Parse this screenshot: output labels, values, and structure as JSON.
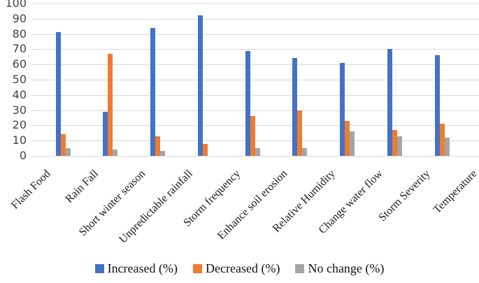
{
  "chart_data": {
    "type": "bar",
    "title": "",
    "xlabel": "",
    "ylabel": "",
    "categories": [
      "Flash Food",
      "Rain Fall",
      "Short winter season",
      "Unpredictable rainfall",
      "Storm frequency",
      "Enhance soil erosion",
      "Relative Humidity",
      "Change water flow",
      "Storm Severity",
      "Temperature"
    ],
    "series": [
      {
        "name": "Increased (%)",
        "color": "#4472C4",
        "values": [
          81,
          29,
          84,
          92,
          69,
          64,
          61,
          70,
          66,
          null
        ]
      },
      {
        "name": "Decreased (%)",
        "color": "#ED7D31",
        "values": [
          14,
          67,
          13,
          8,
          26,
          30,
          23,
          17,
          21,
          null
        ]
      },
      {
        "name": "No change (%)",
        "color": "#A5A5A5",
        "values": [
          5,
          4,
          3,
          0,
          5,
          5,
          16,
          13,
          12,
          null
        ]
      }
    ],
    "ylim": [
      0,
      100
    ],
    "yticks": [
      0,
      10,
      20,
      30,
      40,
      50,
      60,
      70,
      80,
      90,
      100
    ],
    "grid": "horizontal",
    "legend_position": "bottom",
    "category_label_rotation_deg": 45
  }
}
